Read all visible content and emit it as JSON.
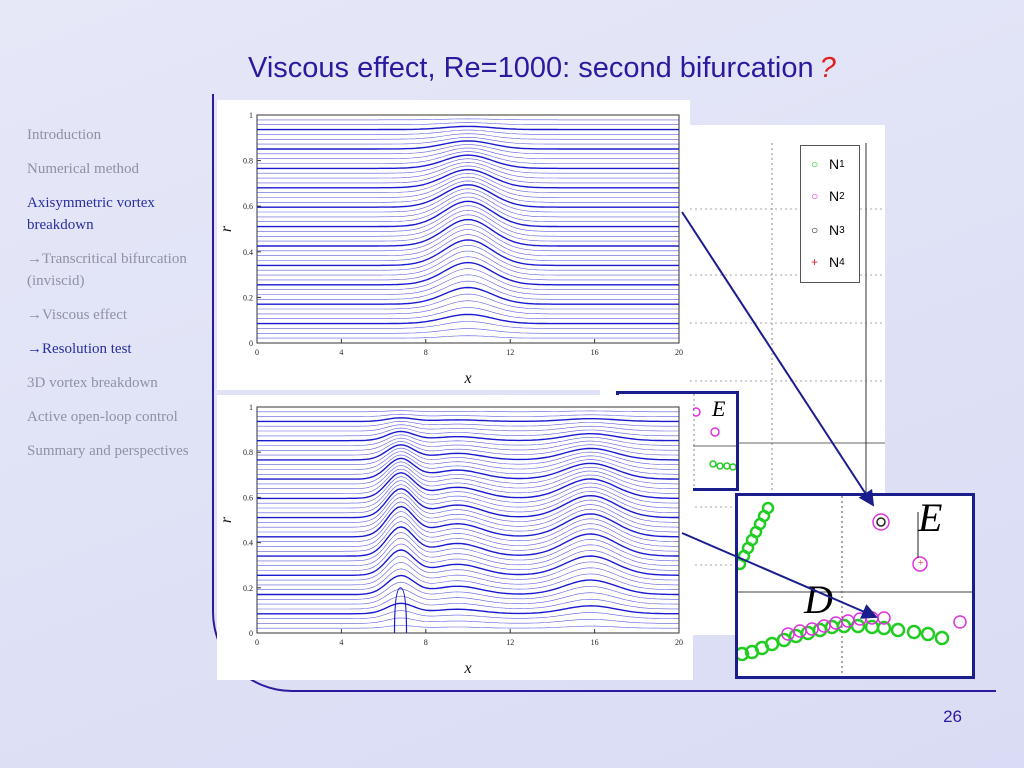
{
  "slide": {
    "title": "Viscous effect, Re=1000: second bifurcation",
    "title_mark": "?",
    "page_number": "26"
  },
  "sidebar": {
    "items": [
      {
        "label": "Introduction",
        "active": false
      },
      {
        "label": "Numerical method",
        "active": false
      },
      {
        "label": "Axisymmetric vortex breakdown",
        "active": true
      },
      {
        "label": "→Transcritical bifurcation (inviscid)",
        "active": false
      },
      {
        "label": "→Viscous effect",
        "active": false
      },
      {
        "label": "→Resolution test",
        "active": true
      },
      {
        "label": "3D vortex breakdown",
        "active": false
      },
      {
        "label": "Active open-loop control",
        "active": false
      },
      {
        "label": "Summary and perspectives",
        "active": false
      }
    ]
  },
  "streamline_plots": {
    "xlabel": "x",
    "ylabel": "r",
    "xticks": [
      "0",
      "4",
      "8",
      "12",
      "16",
      "20"
    ],
    "yticks": [
      "0",
      "0.2",
      "0.4",
      "0.6",
      "0.8",
      "1"
    ],
    "line_color": "#1a1ad0"
  },
  "legend": {
    "entries": [
      {
        "label": "N",
        "sub": "1",
        "symbol": "○",
        "color": "#22cc22"
      },
      {
        "label": "N",
        "sub": "2",
        "symbol": "○",
        "color": "#dd33dd"
      },
      {
        "label": "N",
        "sub": "3",
        "symbol": "○",
        "color": "#222222"
      },
      {
        "label": "N",
        "sub": "4",
        "symbol": "+",
        "color": "#ee2222"
      }
    ]
  },
  "inset": {
    "label_e": "E",
    "label_d": "D"
  },
  "colors": {
    "title": "#2c1a9e",
    "accent": "#1a1d8c",
    "n1": "#22cc22",
    "n2": "#dd33dd"
  }
}
